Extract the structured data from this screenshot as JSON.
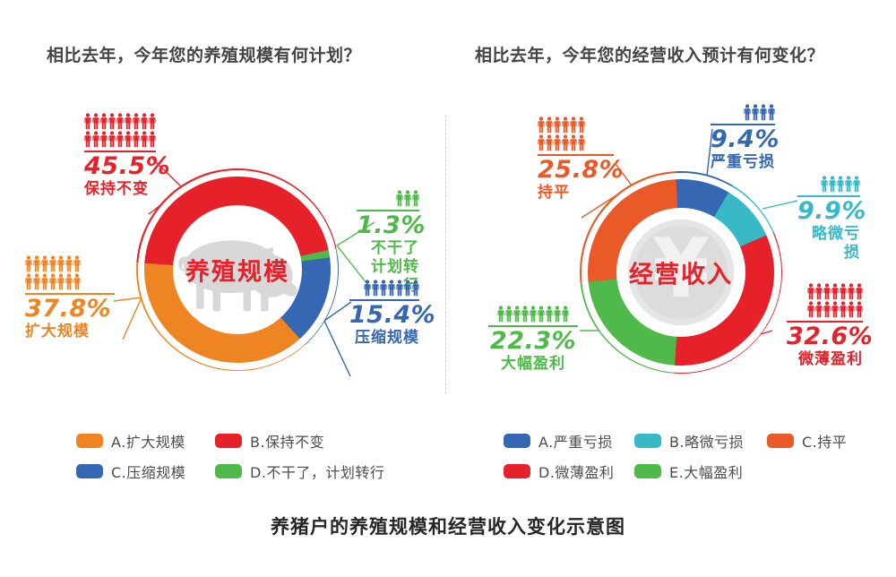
{
  "page": {
    "caption": "养猪户的养殖规模和经营收入变化示意图"
  },
  "chart_data": [
    {
      "type": "pie",
      "variant": "donut",
      "title": "相比去年，今年您的养殖规模有何计划？",
      "center_label": "养殖规模",
      "center_icon": "pig-icon",
      "rotate_deg": 274,
      "segments": [
        {
          "label": "保持不变",
          "pct": "45.5%",
          "value": 45.5,
          "color": "#e62129",
          "icon_rows": [
            9,
            9
          ]
        },
        {
          "label": "不干了",
          "label_lines": [
            "不干了",
            "计划转行"
          ],
          "pct": "1.3%",
          "value": 1.3,
          "color": "#4fba4a",
          "icon_rows": [
            3
          ]
        },
        {
          "label": "压缩规模",
          "label_lines": [
            "压缩规模"
          ],
          "pct": "15.4%",
          "value": 15.4,
          "color": "#3567b2",
          "icon_rows": [
            7
          ]
        },
        {
          "label": "扩大规模",
          "label_lines": [
            "扩大规模"
          ],
          "pct": "37.8%",
          "value": 37.8,
          "color": "#ef8422",
          "icon_rows": [
            7,
            7
          ]
        }
      ],
      "legend": [
        {
          "label": "A.扩大规模",
          "color": "#ef8422"
        },
        {
          "label": "B.保持不变",
          "color": "#e62129"
        },
        {
          "label": "C.压缩规模",
          "color": "#3567b2"
        },
        {
          "label": "D.不干了，计划转行",
          "color": "#4fba4a"
        }
      ]
    },
    {
      "type": "pie",
      "variant": "donut",
      "title": "相比去年，今年您的经营收入预计有何变化？",
      "center_label": "经营收入",
      "center_icon": "yuan-coin-icon",
      "rotate_deg": 357,
      "segments": [
        {
          "label": "严重亏损",
          "label_lines": [
            "严重亏损"
          ],
          "pct": "9.4%",
          "value": 9.4,
          "color": "#3567b2",
          "icon_rows": [
            4
          ]
        },
        {
          "label": "略微亏损",
          "label_lines": [
            "略微亏损"
          ],
          "pct": "9.9%",
          "value": 9.9,
          "color": "#38bac6",
          "icon_rows": [
            5
          ]
        },
        {
          "label": "微薄盈利",
          "label_lines": [
            "微薄盈利"
          ],
          "pct": "32.6%",
          "value": 32.6,
          "color": "#e62129",
          "icon_rows": [
            7,
            7
          ]
        },
        {
          "label": "大幅盈利",
          "label_lines": [
            "大幅盈利"
          ],
          "pct": "22.3%",
          "value": 22.3,
          "color": "#4fba4a",
          "icon_rows": [
            9
          ]
        },
        {
          "label": "持平",
          "label_lines": [
            "持平"
          ],
          "pct": "25.8%",
          "value": 25.8,
          "color": "#ea5a28",
          "icon_rows": [
            6,
            6
          ]
        }
      ],
      "legend": [
        {
          "label": "A.严重亏损",
          "color": "#3567b2"
        },
        {
          "label": "B.略微亏损",
          "color": "#38bac6"
        },
        {
          "label": "C.持平",
          "color": "#ea5a28"
        },
        {
          "label": "D.微薄盈利",
          "color": "#e62129"
        },
        {
          "label": "E.大幅盈利",
          "color": "#4fba4a"
        }
      ]
    }
  ]
}
